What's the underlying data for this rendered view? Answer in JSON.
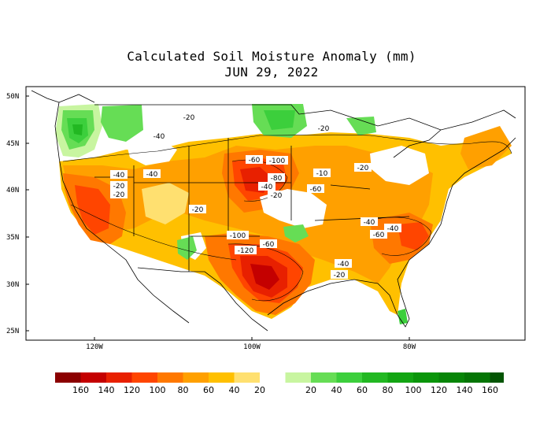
{
  "title": "Calculated Soil Moisture Anomaly (mm)",
  "date": "JUN 29, 2022",
  "lat_labels": [
    "50N",
    "45N",
    "40N",
    "35N",
    "30N",
    "25N"
  ],
  "lon_labels": [
    "120W",
    "100W",
    "80W"
  ],
  "contour_labels": [
    "-20",
    "-40",
    "-40",
    "-20",
    "-20",
    "-40",
    "-20",
    "-60",
    "-100",
    "-80",
    "-40",
    "-20",
    "-60",
    "-10",
    "-20",
    "-20",
    "-40",
    "-60",
    "-40",
    "-100",
    "-60",
    "-120",
    "-40",
    "-20"
  ],
  "legend": {
    "colors": [
      "#8b0000",
      "#c40000",
      "#e82000",
      "#ff4500",
      "#ff7800",
      "#ffa000",
      "#ffc000",
      "#ffe070",
      "#ffffff",
      "#c8f5a0",
      "#66dd55",
      "#3ccf3c",
      "#22b822",
      "#12a512",
      "#0a950a",
      "#078507",
      "#057505",
      "#045504"
    ],
    "labels": [
      "160",
      "140",
      "120",
      "100",
      "80",
      "60",
      "40",
      "20",
      "20",
      "40",
      "60",
      "80",
      "100",
      "120",
      "140",
      "160"
    ]
  }
}
